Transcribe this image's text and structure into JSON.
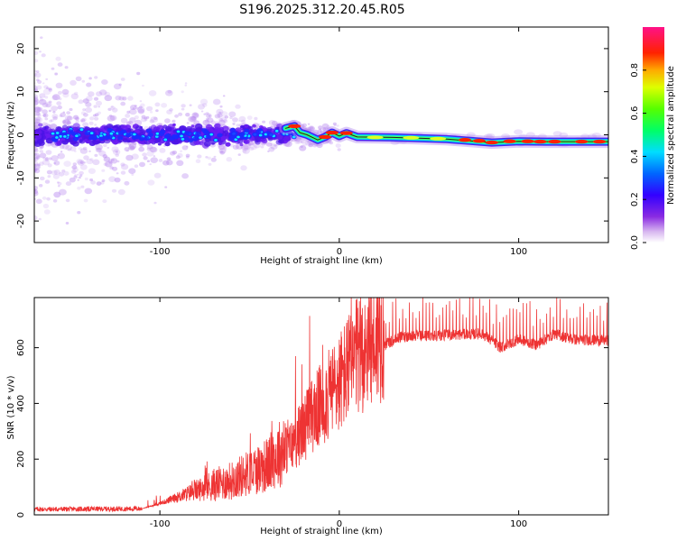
{
  "title": "S196.2025.312.20.45.R05",
  "chart_data": [
    {
      "type": "heatmap",
      "xlabel": "Height of straight line (km)",
      "ylabel": "Frequency (Hz)",
      "xlim": [
        -170,
        150
      ],
      "ylim": [
        -25,
        25
      ],
      "xticks": [
        -100,
        0,
        100
      ],
      "yticks": [
        -20,
        -10,
        0,
        10,
        20
      ],
      "colorbar": {
        "label": "Normalized spectral amplitude",
        "range": [
          0,
          1
        ],
        "ticks": [
          0.0,
          0.2,
          0.4,
          0.6,
          0.8
        ]
      },
      "ridge": [
        {
          "x": -30,
          "f": 1.5
        },
        {
          "x": -25,
          "f": 2.0
        },
        {
          "x": -22,
          "f": 0.5
        },
        {
          "x": -18,
          "f": 0.0
        },
        {
          "x": -12,
          "f": -1.2
        },
        {
          "x": -8,
          "f": -0.5
        },
        {
          "x": -4,
          "f": 0.5
        },
        {
          "x": 0,
          "f": -0.3
        },
        {
          "x": 4,
          "f": 0.4
        },
        {
          "x": 10,
          "f": -0.5
        },
        {
          "x": 30,
          "f": -0.6
        },
        {
          "x": 60,
          "f": -1.0
        },
        {
          "x": 85,
          "f": -1.8
        },
        {
          "x": 100,
          "f": -1.5
        },
        {
          "x": 115,
          "f": -1.6
        },
        {
          "x": 150,
          "f": -1.6
        }
      ]
    },
    {
      "type": "line",
      "xlabel": "Height of straight line (km)",
      "ylabel": "SNR (10 * v/v)",
      "xlim": [
        -170,
        150
      ],
      "ylim": [
        0,
        780
      ],
      "xticks": [
        -100,
        0,
        100
      ],
      "yticks": [
        0,
        200,
        400,
        600
      ],
      "color": "#ee3333",
      "baseline_profile": [
        {
          "x": -170,
          "y": 20
        },
        {
          "x": -110,
          "y": 22
        },
        {
          "x": -100,
          "y": 40
        },
        {
          "x": -80,
          "y": 80
        },
        {
          "x": -60,
          "y": 110
        },
        {
          "x": -40,
          "y": 160
        },
        {
          "x": -25,
          "y": 240
        },
        {
          "x": -15,
          "y": 330
        },
        {
          "x": -5,
          "y": 400
        },
        {
          "x": 5,
          "y": 480
        },
        {
          "x": 15,
          "y": 560
        },
        {
          "x": 25,
          "y": 610
        },
        {
          "x": 35,
          "y": 640
        },
        {
          "x": 80,
          "y": 650
        },
        {
          "x": 90,
          "y": 600
        },
        {
          "x": 100,
          "y": 630
        },
        {
          "x": 110,
          "y": 610
        },
        {
          "x": 120,
          "y": 650
        },
        {
          "x": 130,
          "y": 630
        },
        {
          "x": 150,
          "y": 625
        }
      ]
    }
  ]
}
